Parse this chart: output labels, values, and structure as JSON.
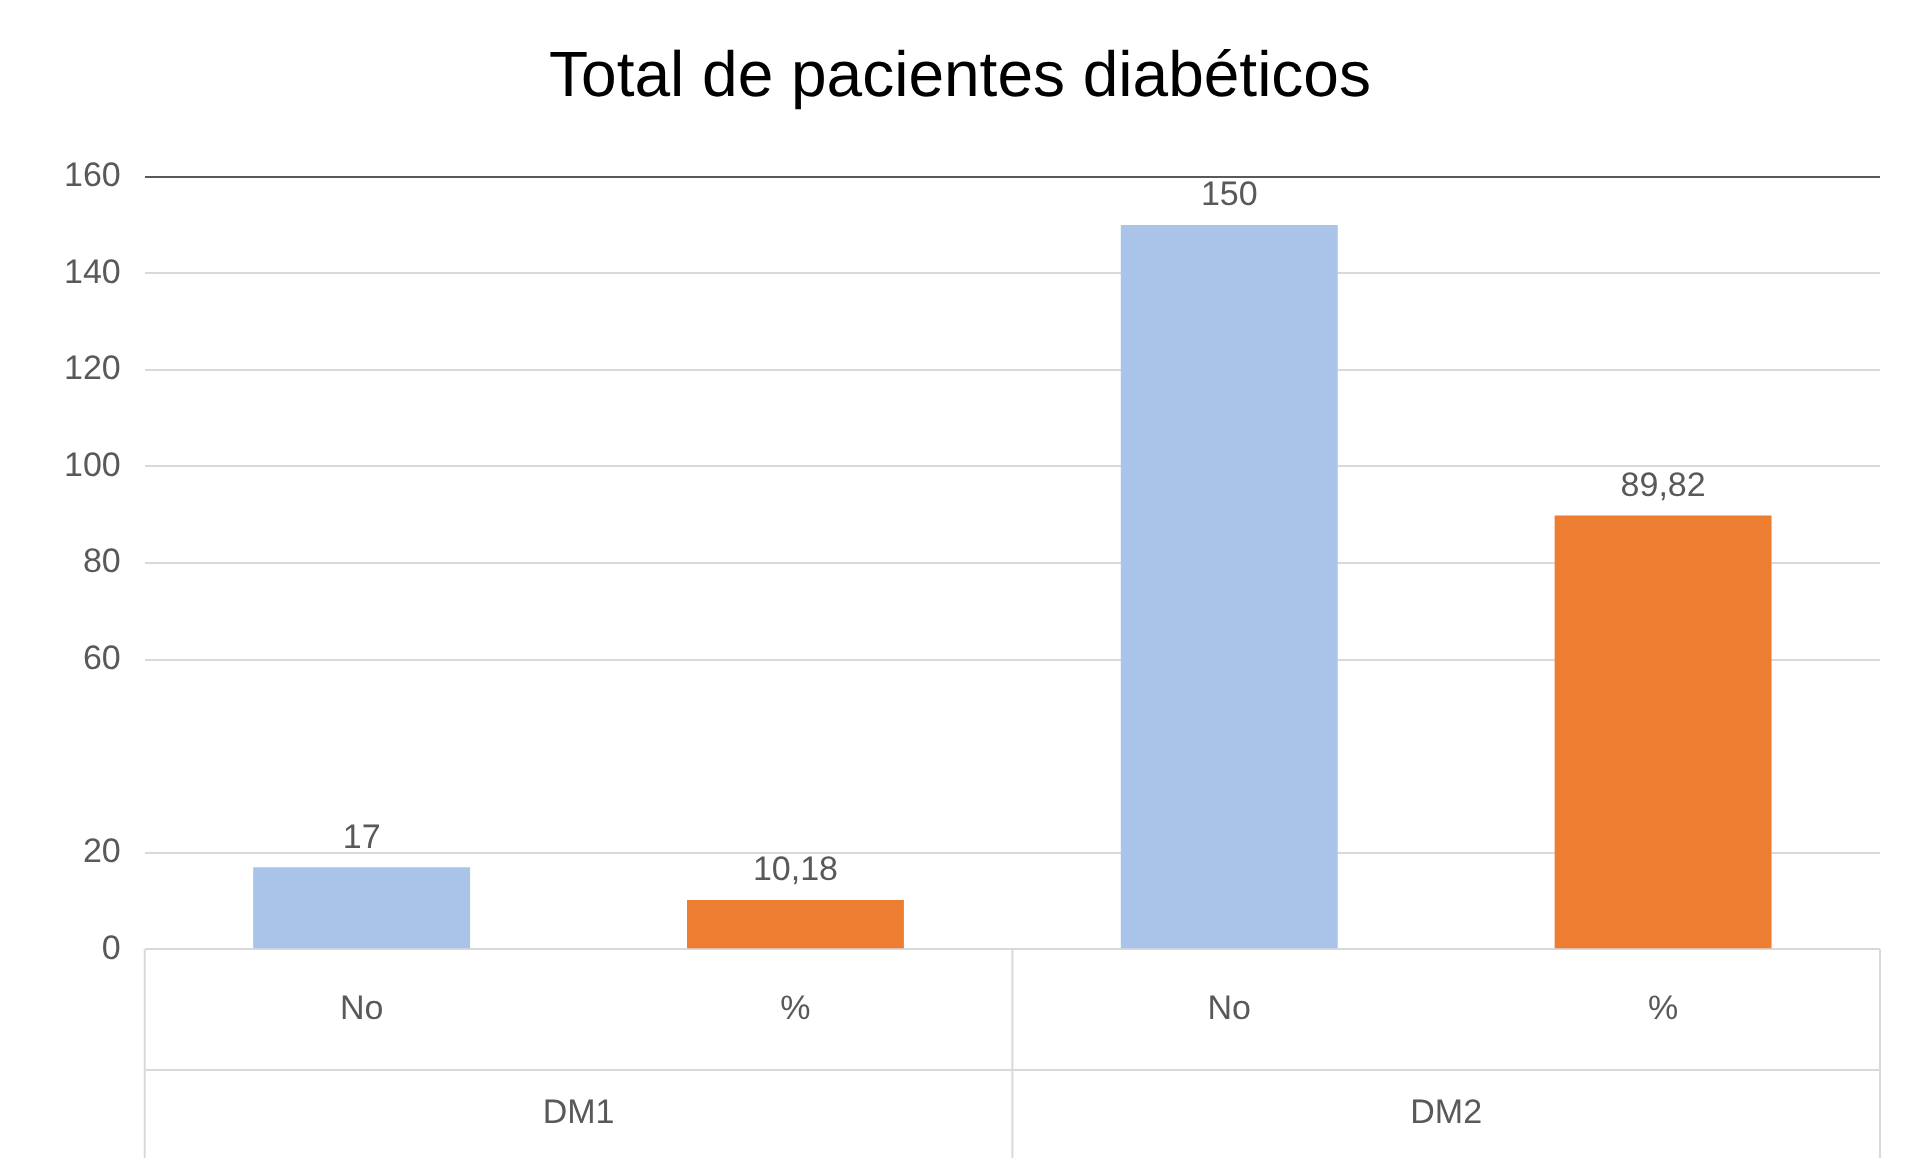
{
  "chart_data": {
    "type": "bar",
    "title": "Total de pacientes diabéticos",
    "categories": [
      "No",
      "%",
      "No",
      "%"
    ],
    "values": [
      17,
      10.18,
      150,
      89.82
    ],
    "colors": [
      "#a9c4e8",
      "#ed7d31",
      "#a9c4e8",
      "#ed7d31"
    ],
    "value_labels": [
      "17",
      "10,18",
      "150",
      "89,82"
    ],
    "annotations": [
      "DM1",
      "DM2"
    ],
    "ylim": [
      0,
      160
    ],
    "yticks": [
      0,
      20,
      60,
      80,
      100,
      120,
      140,
      160
    ],
    "grid": "y",
    "legend": false
  }
}
